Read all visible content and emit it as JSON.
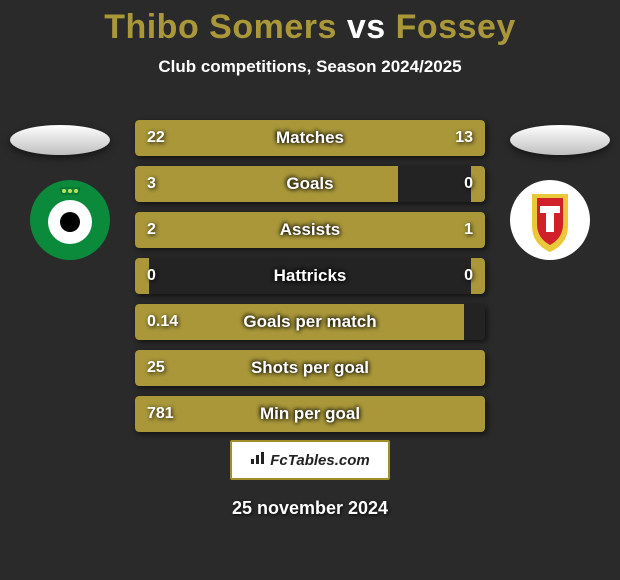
{
  "title": {
    "player1": "Thibo Somers",
    "vs": "vs",
    "player2": "Fossey",
    "color1": "#a9973a",
    "color_vs": "#ffffff",
    "color2": "#a9973a"
  },
  "subtitle": "Club competitions, Season 2024/2025",
  "stats": [
    {
      "label": "Matches",
      "left_val": "22",
      "right_val": "13",
      "left_pct": 63,
      "right_pct": 37
    },
    {
      "label": "Goals",
      "left_val": "3",
      "right_val": "0",
      "left_pct": 75,
      "right_pct": 4
    },
    {
      "label": "Assists",
      "left_val": "2",
      "right_val": "1",
      "left_pct": 67,
      "right_pct": 33
    },
    {
      "label": "Hattricks",
      "left_val": "0",
      "right_val": "0",
      "left_pct": 4,
      "right_pct": 4
    },
    {
      "label": "Goals per match",
      "left_val": "0.14",
      "right_val": "",
      "left_pct": 94,
      "right_pct": 0
    },
    {
      "label": "Shots per goal",
      "left_val": "25",
      "right_val": "",
      "left_pct": 100,
      "right_pct": 0
    },
    {
      "label": "Min per goal",
      "left_val": "781",
      "right_val": "",
      "left_pct": 100,
      "right_pct": 0
    }
  ],
  "colors": {
    "bar_left": "#a9973a",
    "bar_right": "#a9973a",
    "background": "#2a2a2a"
  },
  "badges": {
    "left": {
      "bg": "#0a8a3a",
      "inner": "#ffffff",
      "accent": "#000000"
    },
    "right": {
      "bg": "#ffffff",
      "shield_outer": "#e9c93a",
      "shield_inner": "#d1202a"
    }
  },
  "branding": "FcTables.com",
  "date": "25 november 2024"
}
